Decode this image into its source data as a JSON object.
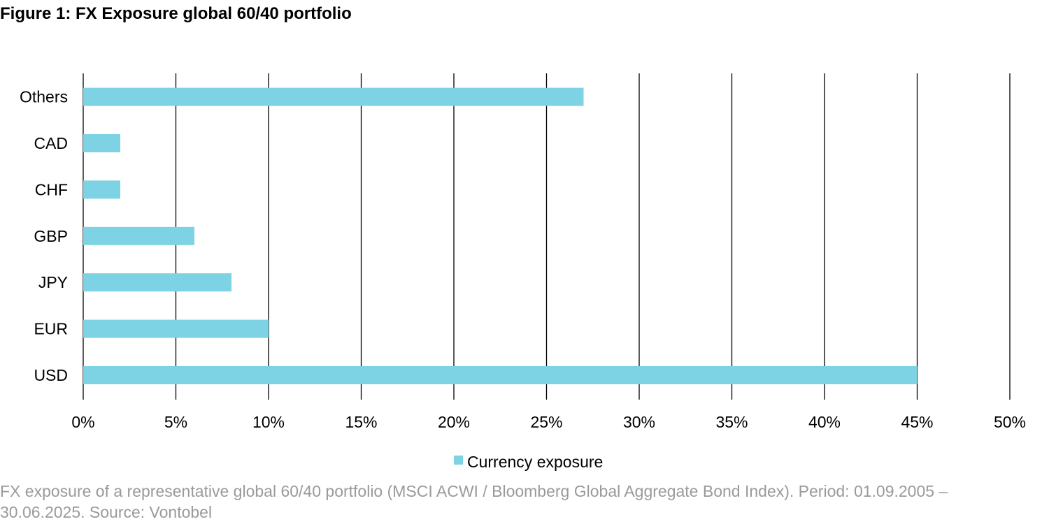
{
  "title": "Figure 1: FX Exposure global 60/40 portfolio",
  "caption": "FX exposure of a representative global 60/40 portfolio (MSCI ACWI / Bloomberg Global Aggregate Bond Index). Period: 01.09.2005 – 30.06.2025. Source: Vontobel",
  "colors": {
    "bar": "#7dd3e3",
    "grid": "#000000",
    "text": "#000000",
    "caption": "#9a9a9a"
  },
  "chart_data": {
    "type": "bar",
    "orientation": "horizontal",
    "title": "Figure 1: FX Exposure global 60/40 portfolio",
    "categories": [
      "USD",
      "EUR",
      "JPY",
      "GBP",
      "CHF",
      "CAD",
      "Others"
    ],
    "series": [
      {
        "name": "Currency exposure",
        "values": [
          45,
          10,
          8,
          6,
          2,
          2,
          27
        ]
      }
    ],
    "x_ticks": [
      "0%",
      "5%",
      "10%",
      "15%",
      "20%",
      "25%",
      "30%",
      "35%",
      "40%",
      "45%",
      "50%"
    ],
    "xlim": [
      0,
      50
    ],
    "unit": "%",
    "grid": "vertical",
    "legend": "bottom-center"
  }
}
